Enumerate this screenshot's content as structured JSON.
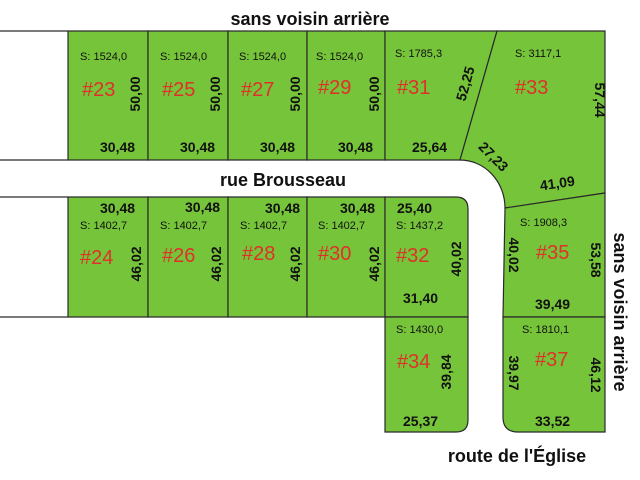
{
  "labels": {
    "top_neighbor": "sans voisin arrière",
    "right_neighbor": "sans voisin arrière",
    "street_main": "rue Brousseau",
    "street_side": "route de l'Église"
  },
  "colors": {
    "lot_fill": "#76c43a",
    "lot_number": "#e0302a"
  },
  "lots": [
    {
      "number": "#23",
      "area": "S: 1524,0",
      "dims": [
        "50,00",
        "30,48"
      ]
    },
    {
      "number": "#25",
      "area": "S: 1524,0",
      "dims": [
        "50,00",
        "30,48"
      ]
    },
    {
      "number": "#27",
      "area": "S: 1524,0",
      "dims": [
        "50,00",
        "30,48"
      ]
    },
    {
      "number": "#29",
      "area": "S: 1524,0",
      "dims": [
        "50,00",
        "30,48"
      ]
    },
    {
      "number": "#31",
      "area": "S: 1785,3",
      "dims": [
        "52,25",
        "25,64"
      ]
    },
    {
      "number": "#33",
      "area": "S: 3117,1",
      "dims": [
        "57,44",
        "27,23",
        "41,09"
      ]
    },
    {
      "number": "#24",
      "area": "S: 1402,7",
      "dims": [
        "30,48",
        "46,02"
      ]
    },
    {
      "number": "#26",
      "area": "S: 1402,7",
      "dims": [
        "30,48",
        "46,02"
      ]
    },
    {
      "number": "#28",
      "area": "S: 1402,7",
      "dims": [
        "30,48",
        "46,02"
      ]
    },
    {
      "number": "#30",
      "area": "S: 1402,7",
      "dims": [
        "30,48",
        "46,02"
      ]
    },
    {
      "number": "#32",
      "area": "S: 1437,2",
      "dims": [
        "25,40",
        "40,02",
        "31,40"
      ]
    },
    {
      "number": "#34",
      "area": "S: 1430,0",
      "dims": [
        "39,84",
        "25,37"
      ]
    },
    {
      "number": "#35",
      "area": "S: 1908,3",
      "dims": [
        "40,02",
        "53,58",
        "39,49"
      ]
    },
    {
      "number": "#37",
      "area": "S: 1810,1",
      "dims": [
        "39,97",
        "46,12",
        "33,52"
      ]
    }
  ]
}
